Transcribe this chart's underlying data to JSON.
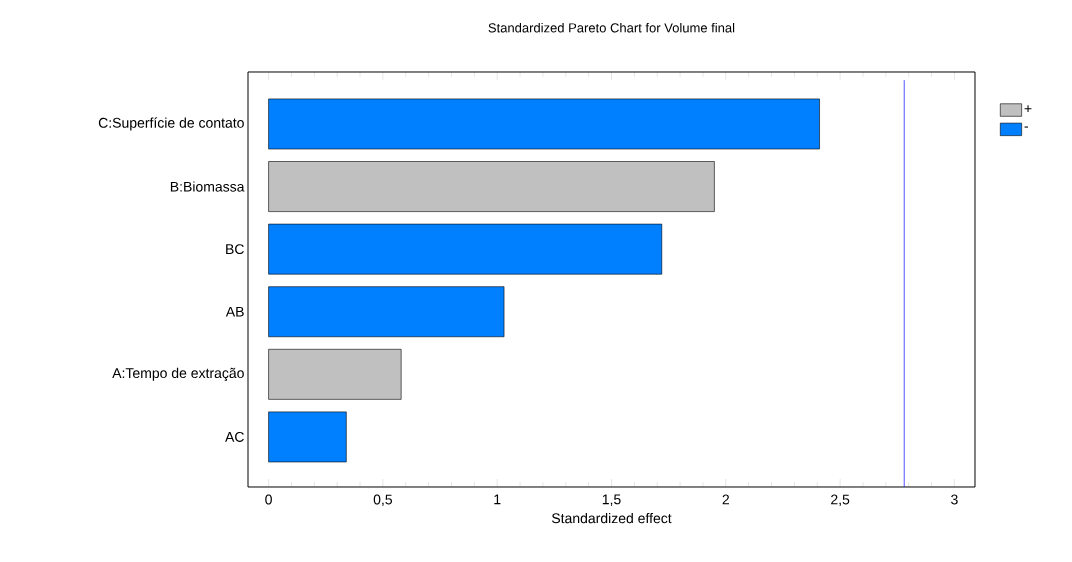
{
  "chart_data": {
    "type": "bar",
    "orientation": "horizontal",
    "title": "Standardized Pareto Chart for Volume final",
    "xlabel": "Standardized effect",
    "categories": [
      "C:Superfície de contato",
      "B:Biomassa",
      "BC",
      "AB",
      "A:Tempo de extração",
      "AC"
    ],
    "series": [
      {
        "name": "+",
        "color": "#c0c0c0",
        "values": [
          null,
          1.95,
          null,
          null,
          0.58,
          null
        ]
      },
      {
        "name": "-",
        "color": "#0080ff",
        "values": [
          2.41,
          null,
          1.72,
          1.03,
          null,
          0.34
        ]
      }
    ],
    "xlim": [
      -0.09,
      3.09
    ],
    "xticks": [
      0,
      {
        "value": 0.5,
        "label": "0,5"
      },
      1,
      {
        "value": 1.5,
        "label": "1,5"
      },
      2,
      {
        "value": 2.5,
        "label": "2,5"
      },
      3
    ],
    "ref_lines": [
      {
        "axis": "x",
        "value": 2.78,
        "color": "#0000ff"
      }
    ],
    "legend": "top right",
    "grid": false
  }
}
